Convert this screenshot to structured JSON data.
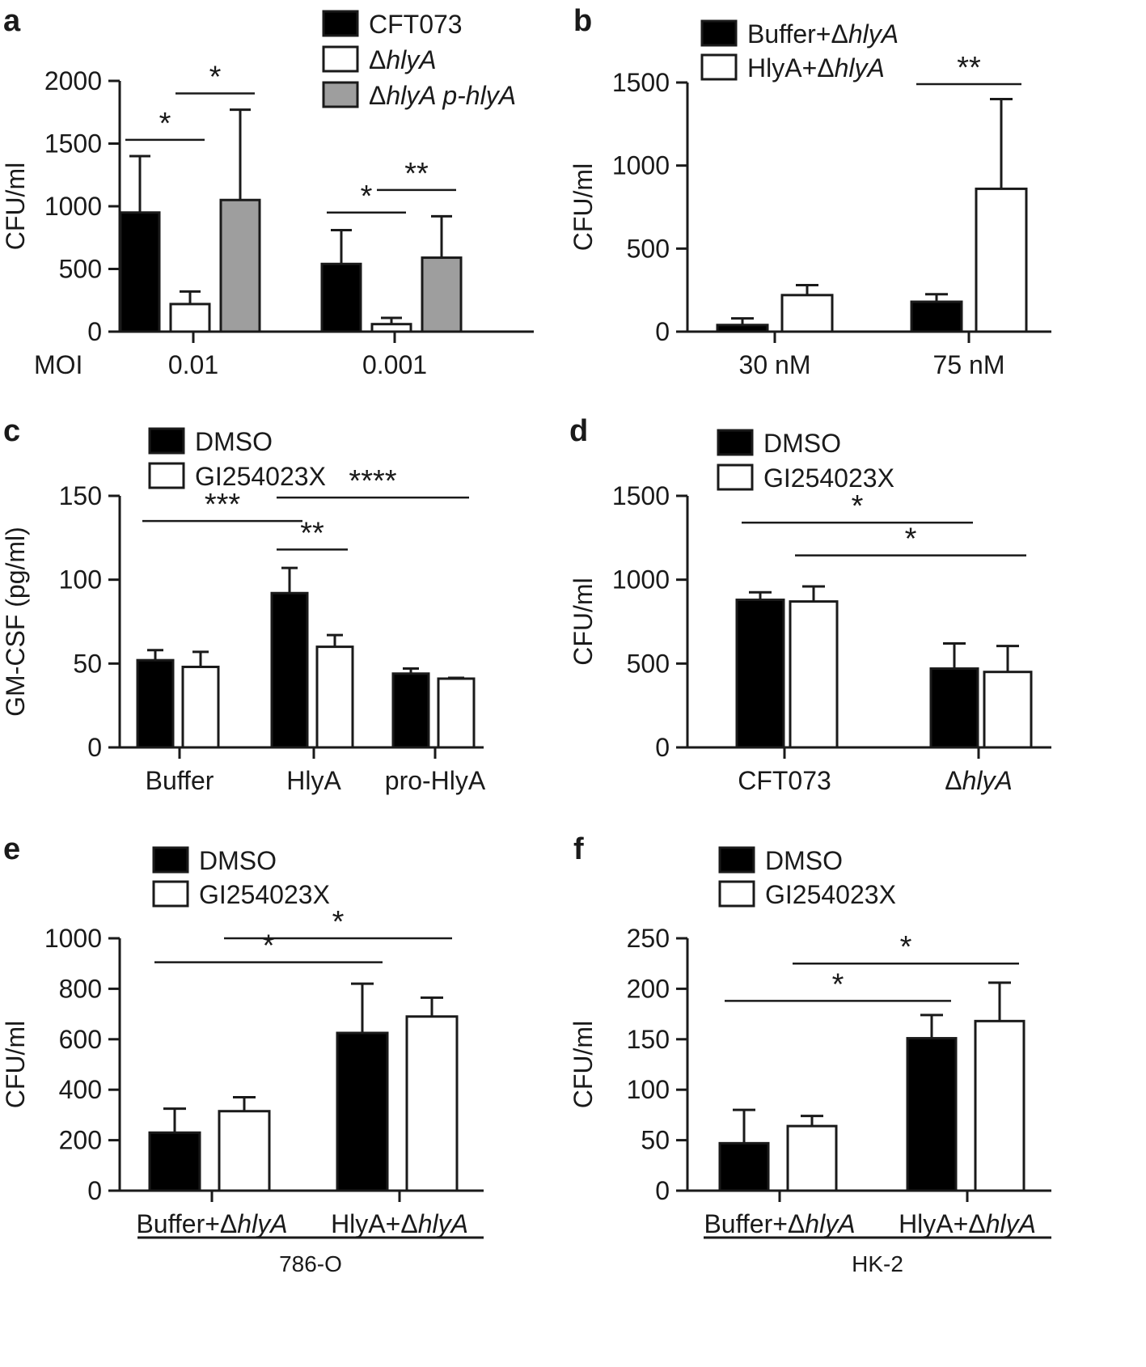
{
  "figure": {
    "panels": [
      {
        "id": "a",
        "label": "a",
        "chart_data": {
          "type": "bar",
          "title": "",
          "xlabel": "",
          "ylabel": "CFU/ml",
          "x_prefix": "MOI",
          "ylim": [
            0,
            2000
          ],
          "yticks": [
            0,
            500,
            1000,
            1500,
            2000
          ],
          "categories": [
            "0.01",
            "0.001"
          ],
          "series": [
            {
              "name": "CFT073",
              "legend_parts": [
                {
                  "text": "CFT073",
                  "italic": false
                }
              ],
              "color": "#000000",
              "values": [
                950,
                540
              ],
              "errors": [
                450,
                270
              ]
            },
            {
              "name": "ΔhlyA",
              "legend_parts": [
                {
                  "text": "Δ",
                  "italic": false
                },
                {
                  "text": "hlyA",
                  "italic": true
                }
              ],
              "color": "#ffffff",
              "values": [
                220,
                60
              ],
              "errors": [
                100,
                50
              ]
            },
            {
              "name": "ΔhlyA p-hlyA",
              "legend_parts": [
                {
                  "text": "Δ",
                  "italic": false
                },
                {
                  "text": "hlyA p-hlyA",
                  "italic": true
                }
              ],
              "color": "#9e9e9e",
              "values": [
                1050,
                590
              ],
              "errors": [
                720,
                330
              ]
            }
          ],
          "significance": [
            {
              "from": [
                0,
                0
              ],
              "to": [
                0,
                1
              ],
              "y": 1530,
              "label": "*"
            },
            {
              "from": [
                0,
                1
              ],
              "to": [
                0,
                2
              ],
              "y": 1900,
              "label": "*"
            },
            {
              "from": [
                1,
                0
              ],
              "to": [
                1,
                1
              ],
              "y": 950,
              "label": "*"
            },
            {
              "from": [
                1,
                1
              ],
              "to": [
                1,
                2
              ],
              "y": 1130,
              "label": "**"
            }
          ]
        }
      },
      {
        "id": "b",
        "label": "b",
        "chart_data": {
          "type": "bar",
          "title": "",
          "xlabel": "",
          "ylabel": "CFU/ml",
          "ylim": [
            0,
            1500
          ],
          "yticks": [
            0,
            500,
            1000,
            1500
          ],
          "categories": [
            "30 nM",
            "75 nM"
          ],
          "series": [
            {
              "name": "Buffer+ΔhlyA",
              "legend_parts": [
                {
                  "text": "Buffer+Δ",
                  "italic": false
                },
                {
                  "text": "hlyA",
                  "italic": true
                }
              ],
              "color": "#000000",
              "values": [
                40,
                180
              ],
              "errors": [
                40,
                45
              ]
            },
            {
              "name": "HlyA+ΔhlyA",
              "legend_parts": [
                {
                  "text": "HlyA+Δ",
                  "italic": false
                },
                {
                  "text": "hlyA",
                  "italic": true
                }
              ],
              "color": "#ffffff",
              "values": [
                220,
                860
              ],
              "errors": [
                60,
                540
              ]
            }
          ],
          "significance": [
            {
              "from": [
                1,
                0
              ],
              "to": [
                1,
                1
              ],
              "y": 1490,
              "label": "**"
            }
          ]
        }
      },
      {
        "id": "c",
        "label": "c",
        "chart_data": {
          "type": "bar",
          "title": "",
          "xlabel": "",
          "ylabel": "GM-CSF (pg/ml)",
          "ylim": [
            0,
            150
          ],
          "yticks": [
            0,
            50,
            100,
            150
          ],
          "categories": [
            "Buffer",
            "HlyA",
            "pro-HlyA"
          ],
          "series": [
            {
              "name": "DMSO",
              "legend_parts": [
                {
                  "text": "DMSO",
                  "italic": false
                }
              ],
              "color": "#000000",
              "values": [
                52,
                92,
                44
              ],
              "errors": [
                6,
                15,
                3
              ]
            },
            {
              "name": "GI254023X",
              "legend_parts": [
                {
                  "text": "GI254023X",
                  "italic": false
                }
              ],
              "color": "#ffffff",
              "values": [
                48,
                60,
                41
              ],
              "errors": [
                9,
                7,
                0.5
              ]
            }
          ],
          "significance": [
            {
              "from": [
                0,
                0
              ],
              "to": [
                1,
                0
              ],
              "y": 135,
              "label": "***"
            },
            {
              "from": [
                1,
                0
              ],
              "to": [
                1,
                1
              ],
              "y": 118,
              "label": "**"
            },
            {
              "from": [
                1,
                0
              ],
              "to": [
                2,
                1
              ],
              "y": 149,
              "label": "****",
              "offset_from": 0.06
            }
          ]
        }
      },
      {
        "id": "d",
        "label": "d",
        "chart_data": {
          "type": "bar",
          "title": "",
          "xlabel": "",
          "ylabel": "CFU/ml",
          "ylim": [
            0,
            1500
          ],
          "yticks": [
            0,
            500,
            1000,
            1500
          ],
          "categories": [
            "CFT073",
            "ΔhlyA"
          ],
          "category_parts": [
            [
              {
                "text": "CFT073",
                "italic": false
              }
            ],
            [
              {
                "text": "Δ",
                "italic": false
              },
              {
                "text": "hlyA",
                "italic": true
              }
            ]
          ],
          "series": [
            {
              "name": "DMSO",
              "legend_parts": [
                {
                  "text": "DMSO",
                  "italic": false
                }
              ],
              "color": "#000000",
              "values": [
                880,
                470
              ],
              "errors": [
                45,
                150
              ]
            },
            {
              "name": "GI254023X",
              "legend_parts": [
                {
                  "text": "GI254023X",
                  "italic": false
                }
              ],
              "color": "#ffffff",
              "values": [
                870,
                450
              ],
              "errors": [
                90,
                155
              ]
            }
          ],
          "significance": [
            {
              "from": [
                0,
                0
              ],
              "to": [
                1,
                0
              ],
              "y": 1340,
              "label": "*"
            },
            {
              "from": [
                0,
                1
              ],
              "to": [
                1,
                1
              ],
              "y": 1145,
              "label": "*"
            }
          ]
        }
      },
      {
        "id": "e",
        "label": "e",
        "chart_data": {
          "type": "bar",
          "title": "",
          "xlabel": "786-O",
          "ylabel": "CFU/ml",
          "ylim": [
            0,
            1000
          ],
          "yticks": [
            0,
            200,
            400,
            600,
            800,
            1000
          ],
          "categories": [
            "Buffer+ΔhlyA",
            "HlyA+ΔhlyA"
          ],
          "category_parts": [
            [
              {
                "text": "Buffer+Δ",
                "italic": false
              },
              {
                "text": "hlyA",
                "italic": true
              }
            ],
            [
              {
                "text": "HlyA+Δ",
                "italic": false
              },
              {
                "text": "hlyA",
                "italic": true
              }
            ]
          ],
          "series": [
            {
              "name": "DMSO",
              "legend_parts": [
                {
                  "text": "DMSO",
                  "italic": false
                }
              ],
              "color": "#000000",
              "values": [
                230,
                625
              ],
              "errors": [
                95,
                195
              ]
            },
            {
              "name": "GI254023X",
              "legend_parts": [
                {
                  "text": "GI254023X",
                  "italic": false
                }
              ],
              "color": "#ffffff",
              "values": [
                315,
                690
              ],
              "errors": [
                55,
                75
              ]
            }
          ],
          "significance": [
            {
              "from": [
                0,
                0
              ],
              "to": [
                1,
                0
              ],
              "y": 905,
              "label": "*"
            },
            {
              "from": [
                0,
                1
              ],
              "to": [
                1,
                1
              ],
              "y": 1000,
              "label": "*"
            }
          ]
        }
      },
      {
        "id": "f",
        "label": "f",
        "chart_data": {
          "type": "bar",
          "title": "",
          "xlabel": "HK-2",
          "ylabel": "CFU/ml",
          "ylim": [
            0,
            250
          ],
          "yticks": [
            0,
            50,
            100,
            150,
            200,
            250
          ],
          "categories": [
            "Buffer+ΔhlyA",
            "HlyA+ΔhlyA"
          ],
          "category_parts": [
            [
              {
                "text": "Buffer+Δ",
                "italic": false
              },
              {
                "text": "hlyA",
                "italic": true
              }
            ],
            [
              {
                "text": "HlyA+Δ",
                "italic": false
              },
              {
                "text": "hlyA",
                "italic": true
              }
            ]
          ],
          "series": [
            {
              "name": "DMSO",
              "legend_parts": [
                {
                  "text": "DMSO",
                  "italic": false
                }
              ],
              "color": "#000000",
              "values": [
                47,
                151
              ],
              "errors": [
                33,
                23
              ]
            },
            {
              "name": "GI254023X",
              "legend_parts": [
                {
                  "text": "GI254023X",
                  "italic": false
                }
              ],
              "color": "#ffffff",
              "values": [
                64,
                168
              ],
              "errors": [
                10,
                38
              ]
            }
          ],
          "significance": [
            {
              "from": [
                0,
                0
              ],
              "to": [
                1,
                0
              ],
              "y": 188,
              "label": "*"
            },
            {
              "from": [
                0,
                1
              ],
              "to": [
                1,
                1
              ],
              "y": 225,
              "label": "*"
            }
          ]
        }
      }
    ]
  }
}
